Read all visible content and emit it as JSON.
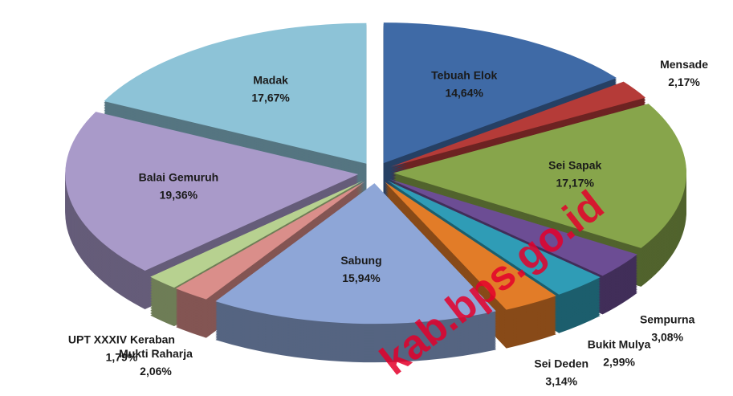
{
  "chart_data": {
    "type": "pie",
    "categories": [
      "Tebuah Elok",
      "Mensade",
      "Sei Sapak",
      "Sempurna",
      "Bukit Mulya",
      "Sei Deden",
      "Sabung",
      "Mukti Raharja",
      "UPT XXXIV Keraban",
      "Balai Gemuruh",
      "Madak"
    ],
    "values": [
      14.64,
      2.17,
      17.17,
      3.08,
      2.99,
      3.14,
      15.94,
      2.06,
      1.79,
      19.36,
      17.67
    ],
    "value_labels": [
      "14,64%",
      "2,17%",
      "17,17%",
      "3,08%",
      "2,99%",
      "3,14%",
      "15,94%",
      "2,06%",
      "1,79%",
      "19,36%",
      "17,67%"
    ],
    "colors": [
      "#3f6aa6",
      "#b53b38",
      "#87a54b",
      "#6c4d94",
      "#2f9cb6",
      "#e27c28",
      "#8ea6d7",
      "#da8e8a",
      "#b7d190",
      "#a99ac9",
      "#8dc3d7"
    ],
    "watermark": "kab.bps.go.id"
  }
}
